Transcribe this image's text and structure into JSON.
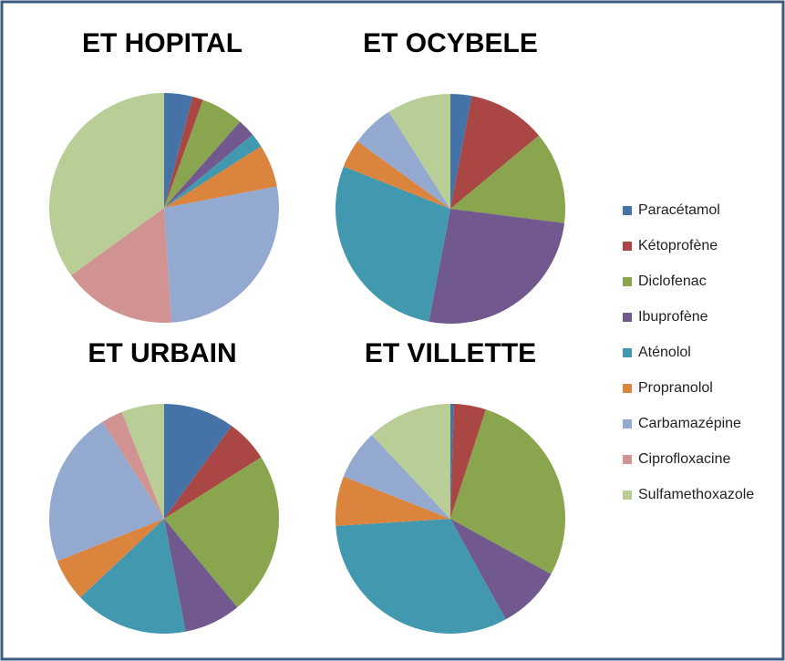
{
  "legend": {
    "labels": [
      "Paracétamol",
      "Kétoprofène",
      "Diclofenac",
      "Ibuprofène",
      "Aténolol",
      "Propranolol",
      "Carbamazépine",
      "Ciprofloxacine",
      "Sulfamethoxazole"
    ],
    "colors": [
      "#4572a7",
      "#aa4643",
      "#89a54e",
      "#71588f",
      "#4198af",
      "#db843d",
      "#93a9cf",
      "#d19392",
      "#b9cd96"
    ]
  },
  "chart_data": [
    {
      "type": "pie",
      "title": "ET HOPITAL",
      "values": [
        4,
        1.5,
        6,
        2.5,
        2,
        6,
        27,
        16,
        35
      ]
    },
    {
      "type": "pie",
      "title": "ET OCYBELE",
      "values": [
        3,
        11,
        13,
        26,
        28,
        4,
        6,
        0,
        9
      ]
    },
    {
      "type": "pie",
      "title": "ET URBAIN",
      "values": [
        10,
        6,
        23,
        8,
        16,
        6,
        22,
        3,
        6
      ]
    },
    {
      "type": "pie",
      "title": "ET VILLETTE",
      "values": [
        0.5,
        4.5,
        28,
        9,
        32,
        7,
        7,
        0,
        12
      ]
    }
  ]
}
